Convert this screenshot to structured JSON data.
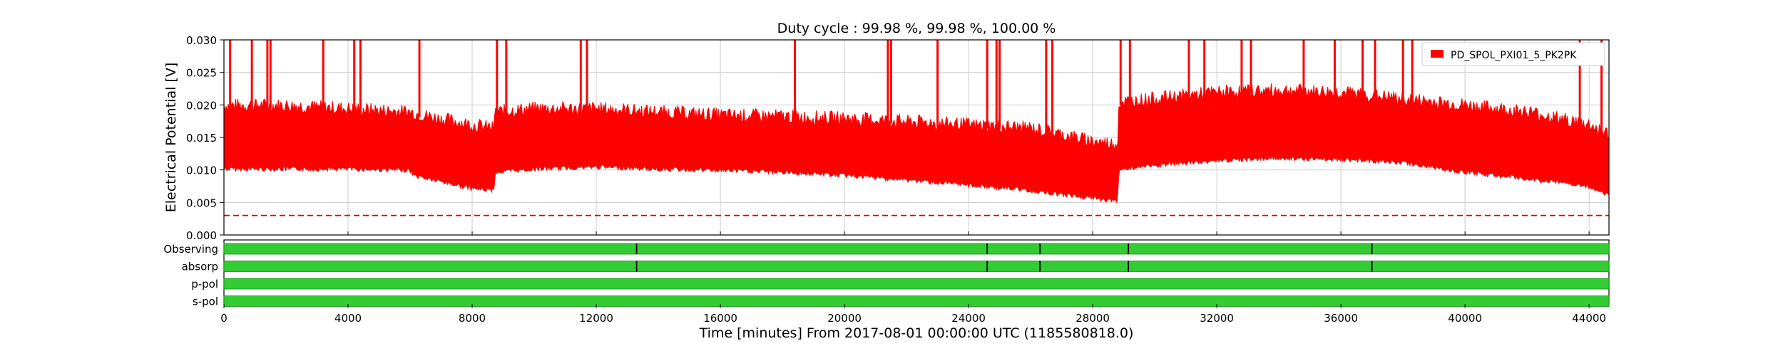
{
  "chart_data": {
    "type": "line",
    "title": "Duty cycle : 99.98 %, 99.98 %, 100.00 %",
    "xlabel": "Time [minutes] From 2017-08-01 00:00:00 UTC (1185580818.0)",
    "ylabel": "Electrical Potential [V]",
    "xlim": [
      0,
      44640
    ],
    "ylim": [
      0,
      0.03
    ],
    "x_ticks": [
      0,
      4000,
      8000,
      12000,
      16000,
      20000,
      24000,
      28000,
      32000,
      36000,
      40000,
      44000
    ],
    "x_tick_labels": [
      "0",
      "4000",
      "8000",
      "12000",
      "16000",
      "20000",
      "24000",
      "28000",
      "32000",
      "36000",
      "40000",
      "44000"
    ],
    "y_ticks": [
      0,
      0.005,
      0.01,
      0.015,
      0.02,
      0.025,
      0.03
    ],
    "y_tick_labels": [
      "0.000",
      "0.005",
      "0.010",
      "0.015",
      "0.020",
      "0.025",
      "0.030"
    ],
    "grid": true,
    "legend_position": "top-right",
    "colors": {
      "series": "#ff0000",
      "threshold": "#dd0000",
      "segment": "#33cc33",
      "segment_edge": "#000000",
      "grid": "#cccccc"
    },
    "series": [
      {
        "name": "PD_SPOL_PXI01_5_PK2PK",
        "style": "filled band between lower and upper envelope, with spikes to top of axis",
        "x": [
          0,
          2000,
          4000,
          6000,
          6100,
          8000,
          8700,
          8750,
          10000,
          12000,
          14000,
          16000,
          18000,
          20000,
          22000,
          24000,
          26000,
          28000,
          28800,
          28850,
          30000,
          32000,
          34000,
          36000,
          38000,
          40000,
          42000,
          44000,
          44640
        ],
        "lower": [
          0.0105,
          0.0105,
          0.0105,
          0.0103,
          0.0095,
          0.0075,
          0.0072,
          0.01,
          0.0105,
          0.0108,
          0.0105,
          0.0103,
          0.01,
          0.0095,
          0.0088,
          0.008,
          0.0072,
          0.006,
          0.0055,
          0.0105,
          0.011,
          0.0118,
          0.0122,
          0.012,
          0.0115,
          0.01,
          0.009,
          0.0078,
          0.0065
        ],
        "upper": [
          0.0195,
          0.0195,
          0.019,
          0.0185,
          0.0183,
          0.0165,
          0.016,
          0.0185,
          0.019,
          0.019,
          0.0185,
          0.018,
          0.0178,
          0.0175,
          0.017,
          0.0165,
          0.016,
          0.014,
          0.0135,
          0.02,
          0.0205,
          0.0215,
          0.0218,
          0.0215,
          0.0205,
          0.0195,
          0.0185,
          0.0165,
          0.015
        ],
        "spikes_x": [
          200,
          900,
          1400,
          1500,
          3200,
          4200,
          4400,
          6300,
          8800,
          9100,
          11500,
          11700,
          18400,
          21400,
          21500,
          23000,
          24600,
          24900,
          25000,
          26500,
          26700,
          28900,
          29200,
          31100,
          31600,
          32800,
          33100,
          34800,
          35800,
          36700,
          37100,
          38000,
          38300,
          43700,
          44400
        ]
      }
    ],
    "threshold": {
      "y": 0.003,
      "style": "dashed"
    },
    "segments": [
      {
        "label": "Observing",
        "interruptions_x": [
          13300,
          24600,
          26300,
          29150,
          37000
        ]
      },
      {
        "label": "absorp",
        "interruptions_x": [
          13300,
          24600,
          26300,
          29150,
          37000
        ]
      },
      {
        "label": "p-pol",
        "interruptions_x": []
      },
      {
        "label": "s-pol",
        "interruptions_x": []
      }
    ]
  }
}
